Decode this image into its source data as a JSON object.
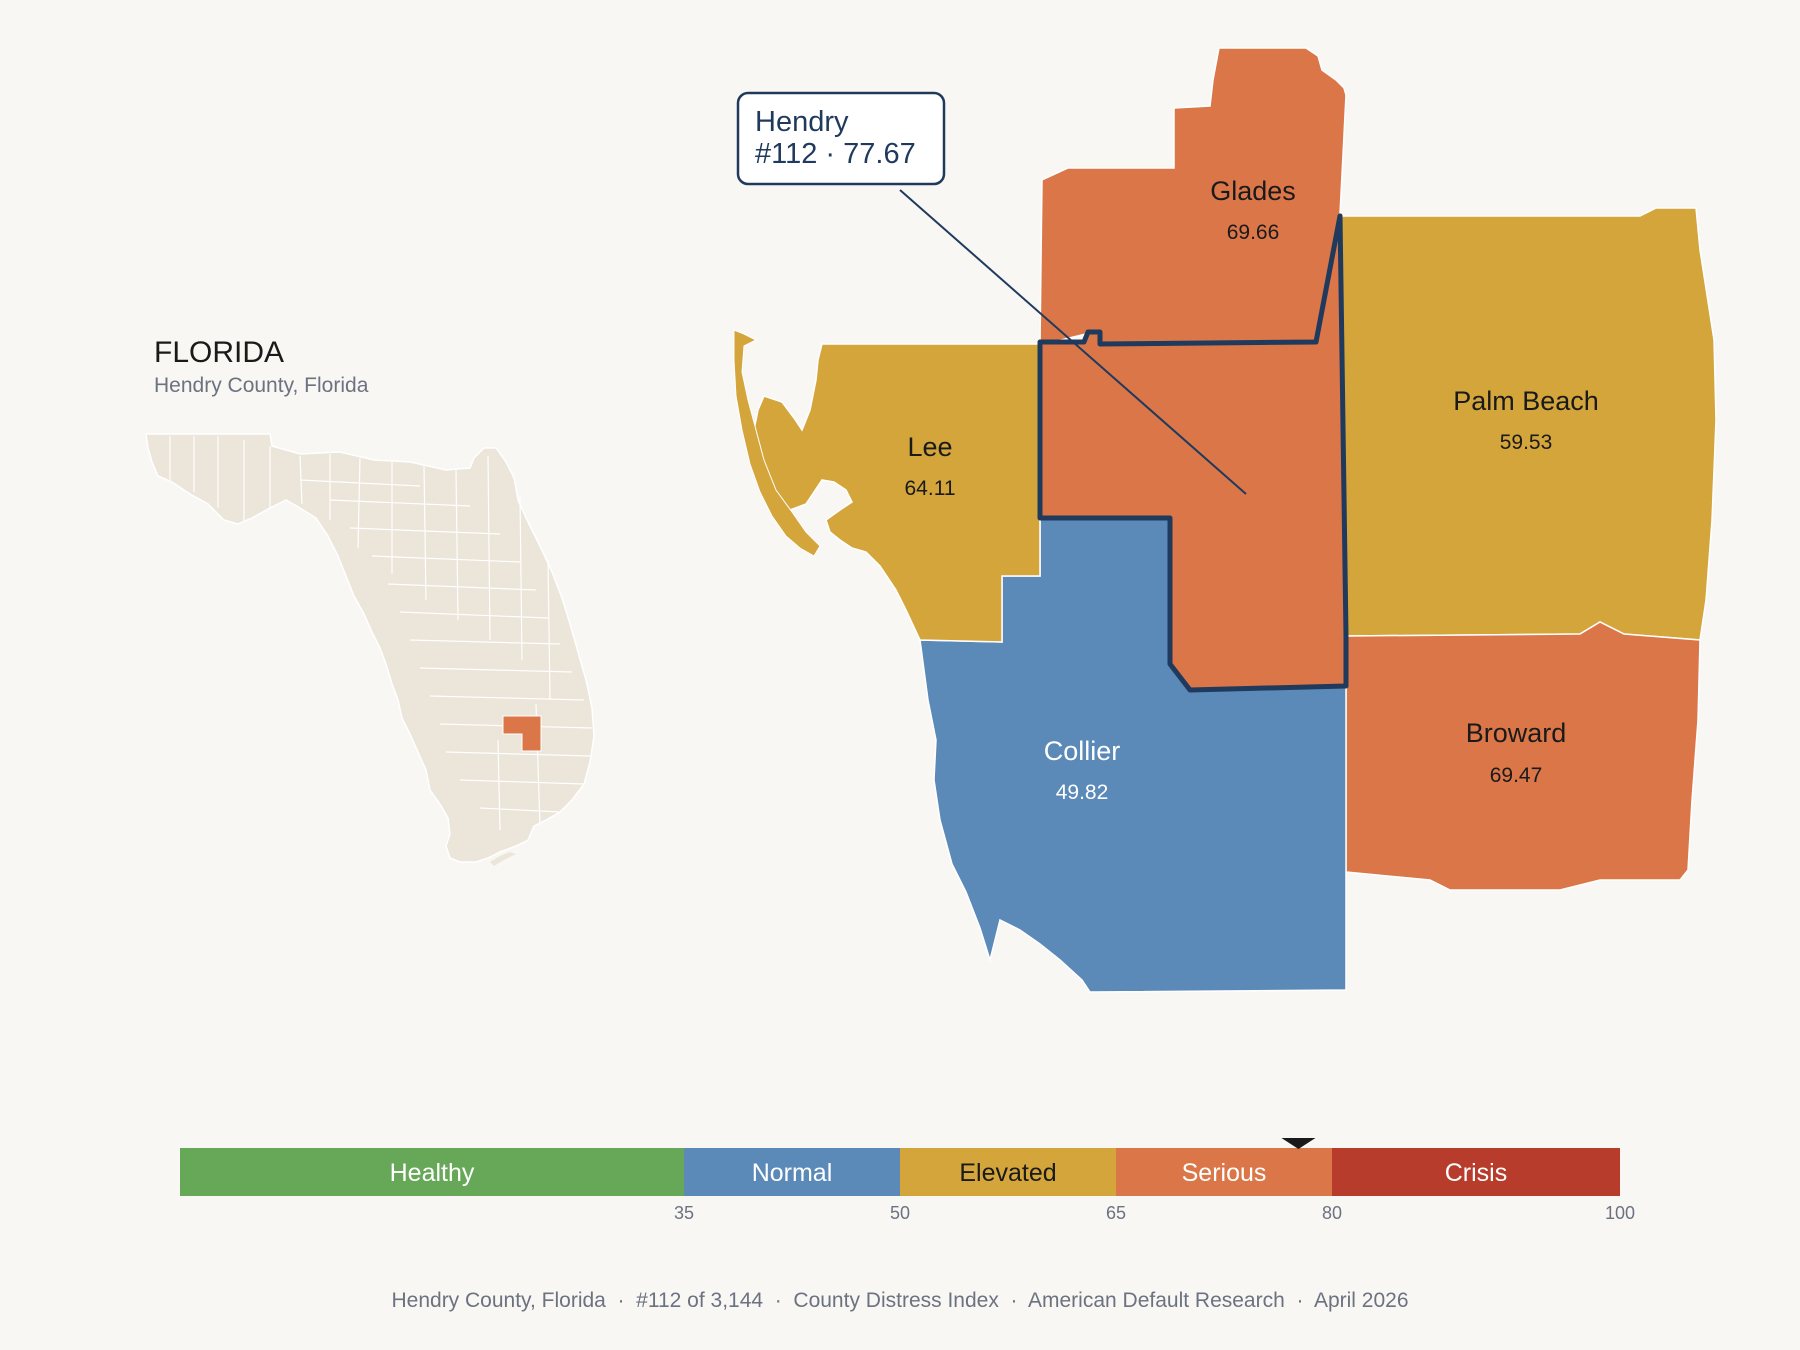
{
  "state": {
    "title": "FLORIDA",
    "subtitle": "Hendry County, Florida"
  },
  "colors": {
    "healthy": "#66a758",
    "normal": "#5b8ab9",
    "elevated": "#d3a53b",
    "serious": "#db7649",
    "crisis": "#b83c2b",
    "inset_base": "#ebe5da",
    "highlight_outline": "#1f3a5c",
    "background": "#f9f7f4"
  },
  "counties": {
    "glades": {
      "name": "Glades",
      "value": "69.66",
      "band": "serious"
    },
    "lee": {
      "name": "Lee",
      "value": "64.11",
      "band": "elevated"
    },
    "palm_beach": {
      "name": "Palm Beach",
      "value": "59.53",
      "band": "elevated"
    },
    "collier": {
      "name": "Collier",
      "value": "49.82",
      "band": "normal"
    },
    "broward": {
      "name": "Broward",
      "value": "69.47",
      "band": "serious"
    },
    "hendry": {
      "value": "77.67",
      "band": "serious"
    }
  },
  "callout": {
    "line1": "Hendry",
    "line2": "#112 · 77.67"
  },
  "scale": {
    "segments": [
      {
        "label": "Healthy",
        "color": "#66a758",
        "text_color": "#ffffff"
      },
      {
        "label": "Normal",
        "color": "#5b8ab9",
        "text_color": "#ffffff"
      },
      {
        "label": "Elevated",
        "color": "#d3a53b",
        "text_color": "#1a1a1a"
      },
      {
        "label": "Serious",
        "color": "#db7649",
        "text_color": "#ffffff"
      },
      {
        "label": "Crisis",
        "color": "#b83c2b",
        "text_color": "#ffffff"
      }
    ],
    "ticks": [
      "35",
      "50",
      "65",
      "80",
      "100"
    ],
    "marker_value": 77.67
  },
  "footer": "Hendry County, Florida  ·  #112 of 3,144  ·  County Distress Index  ·  American Default Research  ·  April 2026"
}
